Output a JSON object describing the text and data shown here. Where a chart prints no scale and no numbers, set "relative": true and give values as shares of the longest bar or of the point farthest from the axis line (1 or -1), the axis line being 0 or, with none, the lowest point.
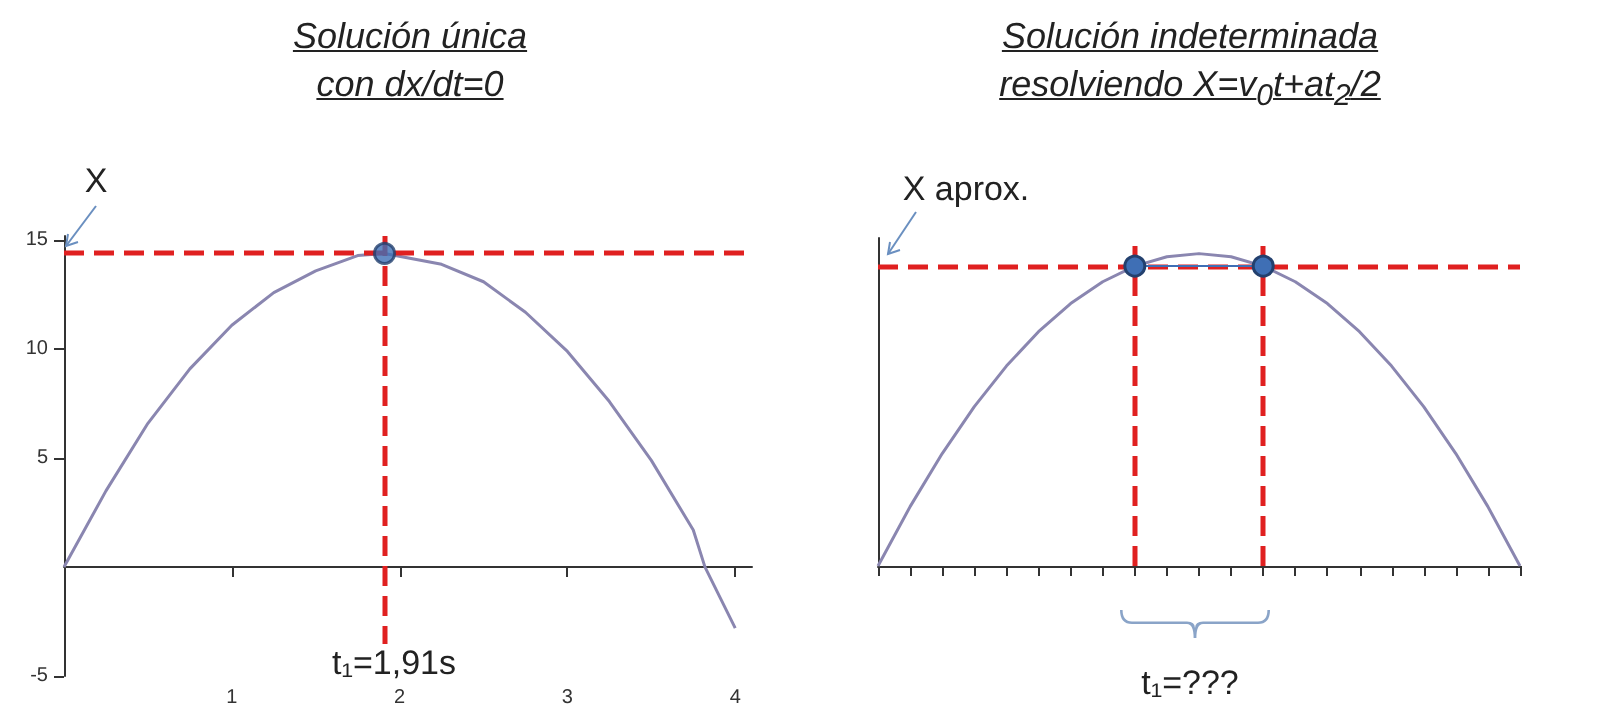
{
  "chart_data": [
    {
      "type": "line",
      "title": "Solución única",
      "subtitle": "con dx/dt=0",
      "x": [
        0,
        0.25,
        0.5,
        0.75,
        1,
        1.25,
        1.5,
        1.75,
        1.91,
        2.25,
        2.5,
        2.75,
        3,
        3.25,
        3.5,
        3.75,
        3.82,
        4
      ],
      "series": [
        {
          "type": "line",
          "color": "#8a86b0",
          "values": [
            0,
            3.5,
            6.6,
            9.1,
            11.1,
            12.6,
            13.6,
            14.3,
            14.4,
            13.9,
            13.1,
            11.7,
            9.9,
            7.6,
            4.9,
            1.7,
            0,
            -2.8
          ]
        },
        {
          "type": "scatter",
          "color": "#3f6fb5",
          "marker": "circle",
          "x": [
            1.91
          ],
          "values": [
            14.4
          ]
        }
      ],
      "xlim": [
        0,
        4.1
      ],
      "ylim": [
        -5,
        15.2
      ],
      "xticks": [
        1,
        2,
        3,
        4
      ],
      "yticks": [
        -5,
        5,
        10,
        15
      ],
      "grid": false,
      "ref_lines": [
        {
          "axis": "y",
          "value": 14.4,
          "color": "#e02020",
          "line_style": "dashed"
        },
        {
          "axis": "x",
          "value": 1.91,
          "color": "#e02020",
          "line_style": "dashed"
        }
      ],
      "annotations": [
        "X",
        "t₁=1,91s"
      ]
    },
    {
      "type": "line",
      "title": "Solución indeterminada",
      "subtitle": "resolviendo X=v$_{0}$t+at$_{2}$/2",
      "relative": true,
      "categories": [
        null,
        null,
        null,
        null,
        null,
        null,
        null,
        null,
        null,
        null,
        null,
        null,
        null,
        null,
        null,
        null,
        null,
        null,
        null,
        null,
        null
      ],
      "series": [
        {
          "type": "line",
          "color": "#8a86b0",
          "values": [
            0,
            0.19,
            0.36,
            0.51,
            0.64,
            0.75,
            0.84,
            0.91,
            0.96,
            0.99,
            1,
            0.99,
            0.96,
            0.91,
            0.84,
            0.75,
            0.64,
            0.51,
            0.36,
            0.19,
            0
          ]
        },
        {
          "type": "line",
          "color": "#3f6fb5",
          "marker": "circle",
          "values": [
            null,
            null,
            null,
            null,
            null,
            null,
            null,
            null,
            0.96,
            null,
            null,
            null,
            0.96,
            null,
            null,
            null,
            null,
            null,
            null,
            null,
            null
          ]
        }
      ],
      "grid": false,
      "ref_lines": [
        {
          "axis": "y",
          "value": 0.96,
          "color": "#e02020",
          "line_style": "dashed"
        }
      ],
      "annotations": [
        "X aprox.",
        "t₁=???"
      ]
    }
  ]
}
